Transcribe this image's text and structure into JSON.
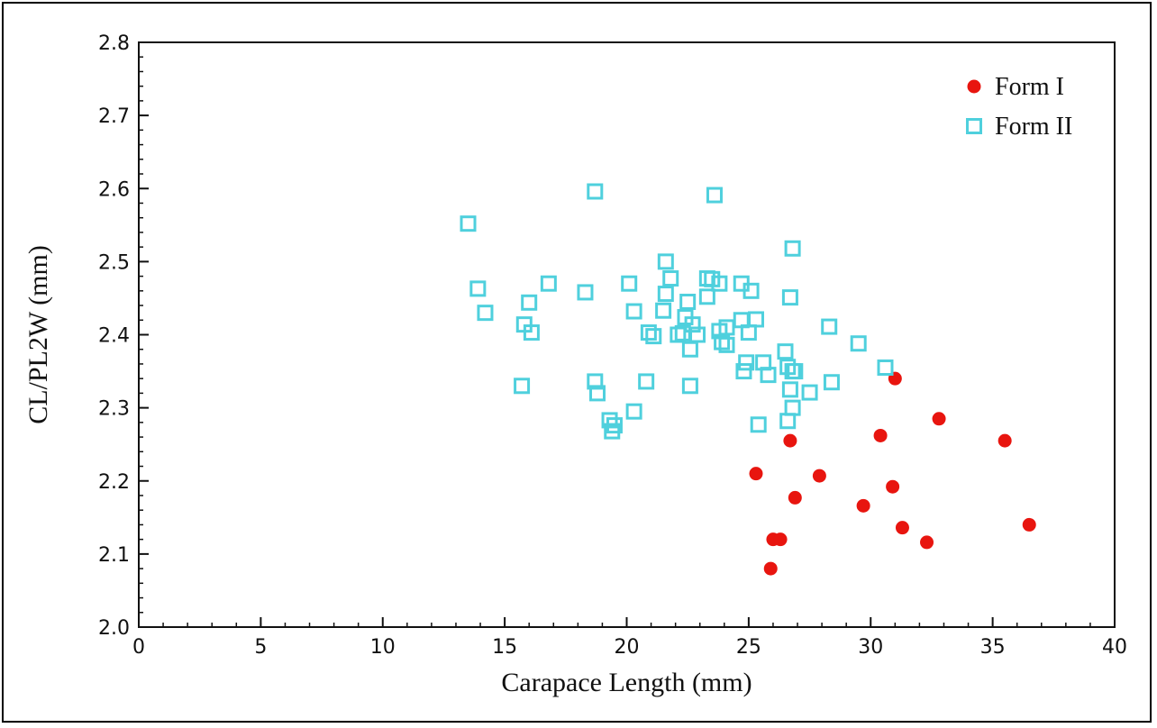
{
  "chart_data": {
    "type": "scatter",
    "xlabel": "Carapace Length (mm)",
    "ylabel": "CL/PL2W (mm)",
    "xlim": [
      0,
      40
    ],
    "ylim": [
      2.0,
      2.8
    ],
    "x_major_ticks": [
      0,
      5,
      10,
      15,
      20,
      25,
      30,
      35,
      40
    ],
    "x_tick_labels": [
      "0",
      "5",
      "10",
      "15",
      "20",
      "25",
      "30",
      "35",
      "40"
    ],
    "y_major_ticks": [
      2.0,
      2.1,
      2.2,
      2.3,
      2.4,
      2.5,
      2.6,
      2.7,
      2.8
    ],
    "y_tick_labels": [
      "2.0",
      "2.1",
      "2.2",
      "2.3",
      "2.4",
      "2.5",
      "2.6",
      "2.7",
      "2.8"
    ],
    "x_minor_step": 1,
    "y_minor_step": 0.02,
    "grid": false,
    "legend_position": "top-right",
    "series": [
      {
        "name": "Form I",
        "marker": "filled-circle",
        "color": "#e8150f",
        "points": [
          [
            25.3,
            2.21
          ],
          [
            25.9,
            2.08
          ],
          [
            26.0,
            2.12
          ],
          [
            26.3,
            2.12
          ],
          [
            26.7,
            2.255
          ],
          [
            26.9,
            2.177
          ],
          [
            27.9,
            2.207
          ],
          [
            29.7,
            2.166
          ],
          [
            30.4,
            2.262
          ],
          [
            30.9,
            2.192
          ],
          [
            31.0,
            2.34
          ],
          [
            31.3,
            2.136
          ],
          [
            32.3,
            2.116
          ],
          [
            32.8,
            2.285
          ],
          [
            35.5,
            2.255
          ],
          [
            36.5,
            2.14
          ]
        ]
      },
      {
        "name": "Form II",
        "marker": "open-square",
        "color": "#4fd0dd",
        "points": [
          [
            13.5,
            2.552
          ],
          [
            13.9,
            2.463
          ],
          [
            14.2,
            2.43
          ],
          [
            15.7,
            2.33
          ],
          [
            15.8,
            2.414
          ],
          [
            16.0,
            2.444
          ],
          [
            16.1,
            2.403
          ],
          [
            16.8,
            2.47
          ],
          [
            18.3,
            2.458
          ],
          [
            18.7,
            2.596
          ],
          [
            18.7,
            2.336
          ],
          [
            18.8,
            2.32
          ],
          [
            19.3,
            2.283
          ],
          [
            19.4,
            2.268
          ],
          [
            19.5,
            2.276
          ],
          [
            20.1,
            2.47
          ],
          [
            20.3,
            2.295
          ],
          [
            20.3,
            2.432
          ],
          [
            20.8,
            2.336
          ],
          [
            20.9,
            2.403
          ],
          [
            21.1,
            2.398
          ],
          [
            21.5,
            2.433
          ],
          [
            21.6,
            2.5
          ],
          [
            21.6,
            2.456
          ],
          [
            21.8,
            2.477
          ],
          [
            22.1,
            2.4
          ],
          [
            22.3,
            2.402
          ],
          [
            22.4,
            2.424
          ],
          [
            22.5,
            2.445
          ],
          [
            22.6,
            2.38
          ],
          [
            22.6,
            2.33
          ],
          [
            22.7,
            2.414
          ],
          [
            22.9,
            2.4
          ],
          [
            23.3,
            2.477
          ],
          [
            23.3,
            2.452
          ],
          [
            23.5,
            2.476
          ],
          [
            23.6,
            2.591
          ],
          [
            23.8,
            2.405
          ],
          [
            23.8,
            2.47
          ],
          [
            23.9,
            2.39
          ],
          [
            24.1,
            2.41
          ],
          [
            24.1,
            2.386
          ],
          [
            24.7,
            2.47
          ],
          [
            24.7,
            2.42
          ],
          [
            24.8,
            2.35
          ],
          [
            24.9,
            2.362
          ],
          [
            25.0,
            2.403
          ],
          [
            25.1,
            2.46
          ],
          [
            25.3,
            2.421
          ],
          [
            25.4,
            2.277
          ],
          [
            25.6,
            2.362
          ],
          [
            25.8,
            2.345
          ],
          [
            26.5,
            2.377
          ],
          [
            26.6,
            2.356
          ],
          [
            26.6,
            2.282
          ],
          [
            26.7,
            2.325
          ],
          [
            26.7,
            2.451
          ],
          [
            26.8,
            2.518
          ],
          [
            26.8,
            2.3
          ],
          [
            26.8,
            2.35
          ],
          [
            26.9,
            2.35
          ],
          [
            27.5,
            2.321
          ],
          [
            28.3,
            2.411
          ],
          [
            28.4,
            2.335
          ],
          [
            29.5,
            2.388
          ],
          [
            30.6,
            2.355
          ]
        ]
      }
    ]
  }
}
